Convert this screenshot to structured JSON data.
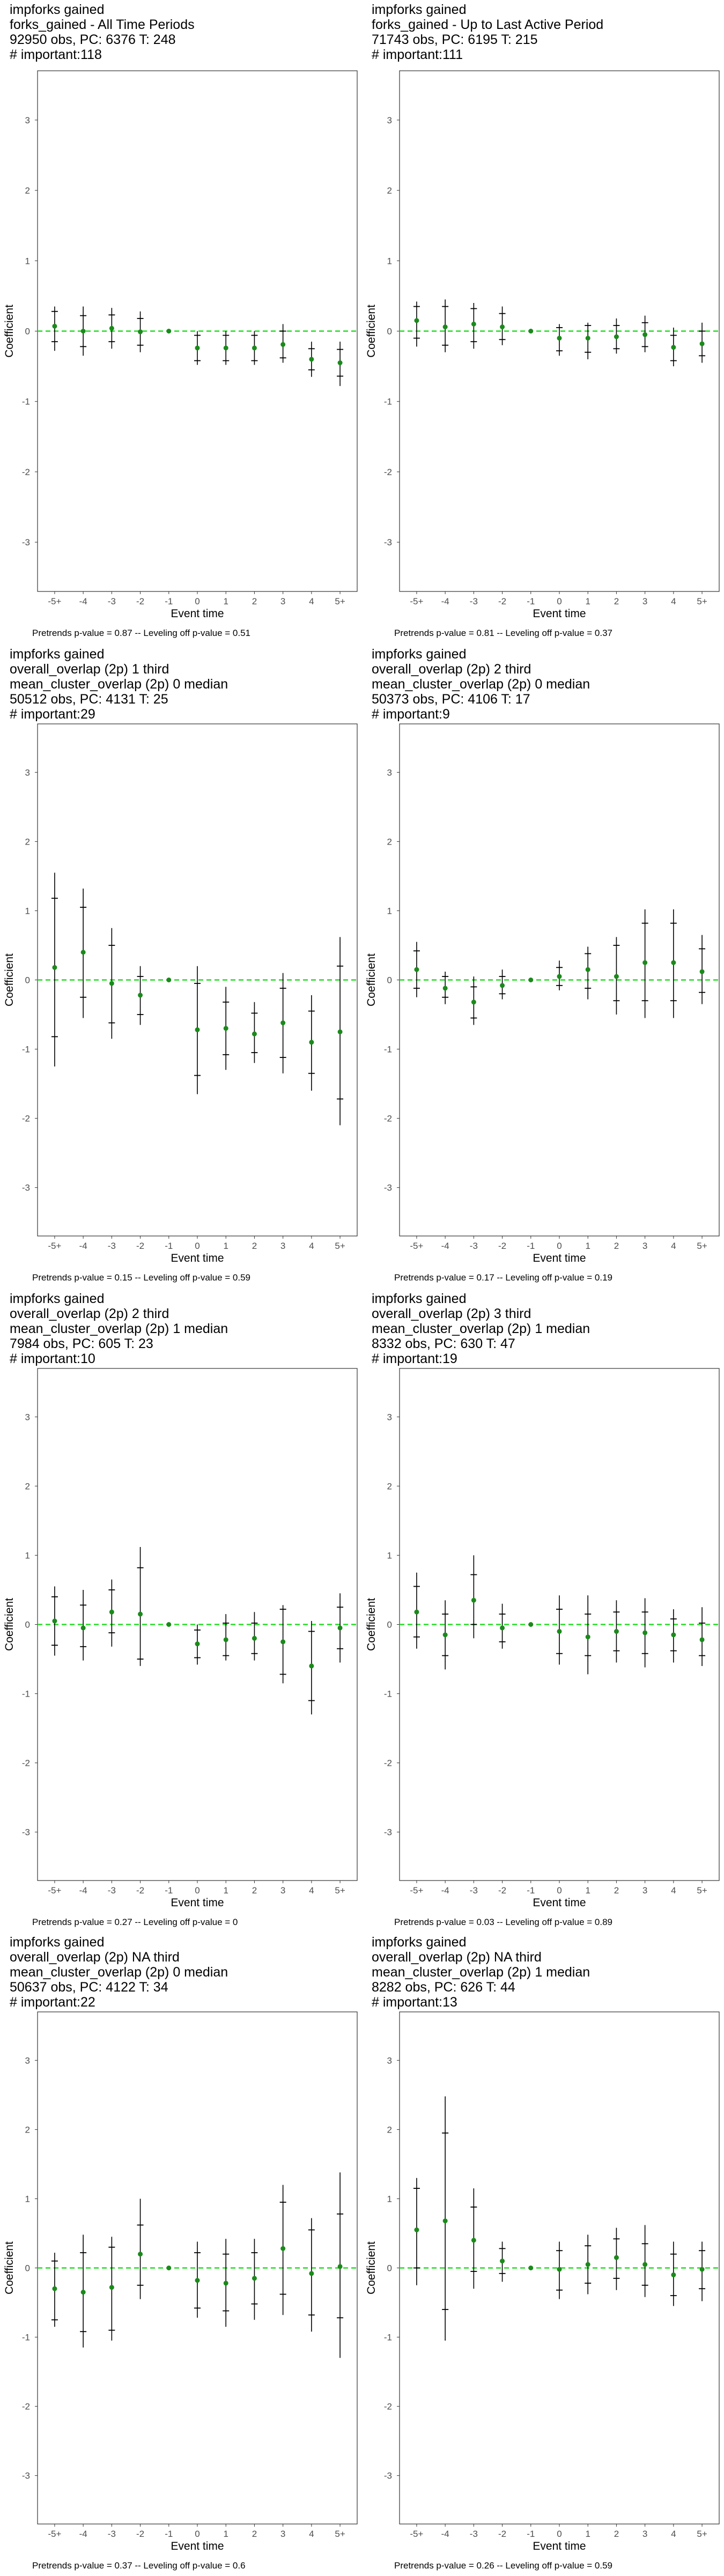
{
  "chart_data": [
    {
      "type": "scatter",
      "header": [
        " impforks gained",
        "forks_gained - All Time Periods",
        "92950 obs, PC: 6376 T: 248",
        "# important:118"
      ],
      "xlabel": "Event time",
      "ylabel": "Coefficient",
      "categories": [
        "-5+",
        "-4",
        "-3",
        "-2",
        "-1",
        "0",
        "1",
        "2",
        "3",
        "4",
        "5+"
      ],
      "ylim": [
        -3.7,
        3.7
      ],
      "yticks": [
        -3,
        -2,
        -1,
        0,
        1,
        2,
        3
      ],
      "series": [
        {
          "estimate": [
            0.07,
            0.0,
            0.04,
            -0.01,
            0.0,
            -0.24,
            -0.24,
            -0.24,
            -0.19,
            -0.4,
            -0.45
          ],
          "inner_lo": [
            -0.15,
            -0.22,
            -0.15,
            -0.2,
            0.0,
            -0.42,
            -0.42,
            -0.42,
            -0.38,
            -0.55,
            -0.64
          ],
          "inner_hi": [
            0.28,
            0.22,
            0.23,
            0.18,
            0.0,
            -0.06,
            -0.06,
            -0.06,
            0.0,
            -0.25,
            -0.26
          ],
          "outer_lo": [
            -0.28,
            -0.35,
            -0.25,
            -0.3,
            0.0,
            -0.48,
            -0.48,
            -0.48,
            -0.45,
            -0.65,
            -0.78
          ],
          "outer_hi": [
            0.35,
            0.35,
            0.33,
            0.28,
            0.0,
            0.0,
            0.0,
            0.0,
            0.1,
            -0.15,
            -0.15
          ]
        }
      ],
      "footer": "Pretrends p-value = 0.87 -- Leveling off p-value = 0.51"
    },
    {
      "type": "scatter",
      "header": [
        " impforks gained",
        "forks_gained - Up to Last Active Period",
        "71743 obs, PC: 6195 T: 215",
        "# important:111"
      ],
      "xlabel": "Event time",
      "ylabel": "Coefficient",
      "categories": [
        "-5+",
        "-4",
        "-3",
        "-2",
        "-1",
        "0",
        "1",
        "2",
        "3",
        "4",
        "5+"
      ],
      "ylim": [
        -3.7,
        3.7
      ],
      "yticks": [
        -3,
        -2,
        -1,
        0,
        1,
        2,
        3
      ],
      "series": [
        {
          "estimate": [
            0.15,
            0.06,
            0.1,
            0.06,
            0.0,
            -0.1,
            -0.1,
            -0.08,
            -0.05,
            -0.23,
            -0.18
          ],
          "inner_lo": [
            -0.1,
            -0.2,
            -0.15,
            -0.12,
            0.0,
            -0.28,
            -0.3,
            -0.25,
            -0.22,
            -0.42,
            -0.35
          ],
          "inner_hi": [
            0.35,
            0.35,
            0.32,
            0.25,
            0.0,
            0.05,
            0.08,
            0.08,
            0.12,
            -0.06,
            0.0
          ],
          "outer_lo": [
            -0.22,
            -0.3,
            -0.25,
            -0.2,
            0.0,
            -0.35,
            -0.4,
            -0.32,
            -0.3,
            -0.5,
            -0.45
          ],
          "outer_hi": [
            0.42,
            0.45,
            0.4,
            0.35,
            0.0,
            0.1,
            0.12,
            0.18,
            0.22,
            0.05,
            0.12
          ]
        }
      ],
      "footer": "Pretrends p-value = 0.81 -- Leveling off p-value = 0.37"
    },
    {
      "type": "scatter",
      "header": [
        " impforks gained",
        "overall_overlap (2p) 1 third",
        "mean_cluster_overlap (2p) 0 median",
        "50512 obs, PC: 4131 T: 25",
        "# important:29"
      ],
      "xlabel": "Event time",
      "ylabel": "Coefficient",
      "categories": [
        "-5+",
        "-4",
        "-3",
        "-2",
        "-1",
        "0",
        "1",
        "2",
        "3",
        "4",
        "5+"
      ],
      "ylim": [
        -3.7,
        3.7
      ],
      "yticks": [
        -3,
        -2,
        -1,
        0,
        1,
        2,
        3
      ],
      "series": [
        {
          "estimate": [
            0.18,
            0.4,
            -0.05,
            -0.22,
            0.0,
            -0.72,
            -0.7,
            -0.78,
            -0.62,
            -0.9,
            -0.75
          ],
          "inner_lo": [
            -0.82,
            -0.25,
            -0.62,
            -0.5,
            0.0,
            -1.38,
            -1.08,
            -1.05,
            -1.12,
            -1.35,
            -1.72
          ],
          "inner_hi": [
            1.18,
            1.05,
            0.5,
            0.05,
            0.0,
            -0.05,
            -0.32,
            -0.48,
            -0.12,
            -0.45,
            0.2
          ],
          "outer_lo": [
            -1.25,
            -0.55,
            -0.85,
            -0.65,
            0.0,
            -1.65,
            -1.3,
            -1.2,
            -1.35,
            -1.6,
            -2.1
          ],
          "outer_hi": [
            1.55,
            1.32,
            0.75,
            0.2,
            0.0,
            0.2,
            -0.1,
            -0.32,
            0.1,
            -0.22,
            0.62
          ]
        }
      ],
      "footer": "Pretrends p-value = 0.15 -- Leveling off p-value = 0.59"
    },
    {
      "type": "scatter",
      "header": [
        " impforks gained",
        "overall_overlap (2p) 2 third",
        "mean_cluster_overlap (2p) 0 median",
        "50373 obs, PC: 4106 T: 17",
        "# important:9"
      ],
      "xlabel": "Event time",
      "ylabel": "Coefficient",
      "categories": [
        "-5+",
        "-4",
        "-3",
        "-2",
        "-1",
        "0",
        "1",
        "2",
        "3",
        "4",
        "5+"
      ],
      "ylim": [
        -3.7,
        3.7
      ],
      "yticks": [
        -3,
        -2,
        -1,
        0,
        1,
        2,
        3
      ],
      "series": [
        {
          "estimate": [
            0.15,
            -0.12,
            -0.32,
            -0.08,
            0.0,
            0.05,
            0.15,
            0.05,
            0.25,
            0.25,
            0.12
          ],
          "inner_lo": [
            -0.12,
            -0.25,
            -0.55,
            -0.2,
            0.0,
            -0.08,
            -0.12,
            -0.3,
            -0.3,
            -0.3,
            -0.18
          ],
          "inner_hi": [
            0.42,
            0.05,
            -0.1,
            0.05,
            0.0,
            0.18,
            0.38,
            0.5,
            0.82,
            0.82,
            0.45
          ],
          "outer_lo": [
            -0.25,
            -0.35,
            -0.65,
            -0.28,
            0.0,
            -0.15,
            -0.28,
            -0.5,
            -0.55,
            -0.55,
            -0.35
          ],
          "outer_hi": [
            0.55,
            0.12,
            0.05,
            0.15,
            0.0,
            0.28,
            0.48,
            0.62,
            1.02,
            1.02,
            0.65
          ]
        }
      ],
      "footer": "Pretrends p-value = 0.17 -- Leveling off p-value = 0.19"
    },
    {
      "type": "scatter",
      "header": [
        " impforks gained",
        "overall_overlap (2p) 2 third",
        "mean_cluster_overlap (2p) 1 median",
        "7984 obs, PC: 605 T: 23",
        "# important:10"
      ],
      "xlabel": "Event time",
      "ylabel": "Coefficient",
      "categories": [
        "-5+",
        "-4",
        "-3",
        "-2",
        "-1",
        "0",
        "1",
        "2",
        "3",
        "4",
        "5+"
      ],
      "ylim": [
        -3.7,
        3.7
      ],
      "yticks": [
        -3,
        -2,
        -1,
        0,
        1,
        2,
        3
      ],
      "series": [
        {
          "estimate": [
            0.05,
            -0.05,
            0.18,
            0.15,
            0.0,
            -0.28,
            -0.22,
            -0.2,
            -0.25,
            -0.6,
            -0.05
          ],
          "inner_lo": [
            -0.3,
            -0.32,
            -0.12,
            -0.5,
            0.0,
            -0.48,
            -0.45,
            -0.42,
            -0.72,
            -1.1,
            -0.35
          ],
          "inner_hi": [
            0.4,
            0.28,
            0.5,
            0.82,
            0.0,
            -0.08,
            0.02,
            0.02,
            0.22,
            -0.1,
            0.25
          ],
          "outer_lo": [
            -0.45,
            -0.52,
            -0.32,
            -0.6,
            0.0,
            -0.58,
            -0.52,
            -0.52,
            -0.85,
            -1.3,
            -0.55
          ],
          "outer_hi": [
            0.55,
            0.5,
            0.65,
            1.12,
            0.0,
            0.0,
            0.15,
            0.18,
            0.28,
            0.05,
            0.45
          ]
        }
      ],
      "footer": "Pretrends p-value = 0.27 -- Leveling off p-value = 0"
    },
    {
      "type": "scatter",
      "header": [
        " impforks gained",
        "overall_overlap (2p) 3 third",
        "mean_cluster_overlap (2p) 1 median",
        "8332 obs, PC: 630 T: 47",
        "# important:19"
      ],
      "xlabel": "Event time",
      "ylabel": "Coefficient",
      "categories": [
        "-5+",
        "-4",
        "-3",
        "-2",
        "-1",
        "0",
        "1",
        "2",
        "3",
        "4",
        "5+"
      ],
      "ylim": [
        -3.7,
        3.7
      ],
      "yticks": [
        -3,
        -2,
        -1,
        0,
        1,
        2,
        3
      ],
      "series": [
        {
          "estimate": [
            0.18,
            -0.15,
            0.35,
            -0.05,
            0.0,
            -0.1,
            -0.18,
            -0.1,
            -0.12,
            -0.15,
            -0.22
          ],
          "inner_lo": [
            -0.18,
            -0.45,
            0.0,
            -0.25,
            0.0,
            -0.42,
            -0.45,
            -0.38,
            -0.42,
            -0.38,
            -0.45
          ],
          "inner_hi": [
            0.55,
            0.15,
            0.72,
            0.15,
            0.0,
            0.22,
            0.15,
            0.18,
            0.18,
            0.08,
            0.02
          ],
          "outer_lo": [
            -0.35,
            -0.65,
            -0.2,
            -0.35,
            0.0,
            -0.58,
            -0.72,
            -0.55,
            -0.62,
            -0.55,
            -0.6
          ],
          "outer_hi": [
            0.75,
            0.35,
            1.0,
            0.3,
            0.0,
            0.42,
            0.42,
            0.35,
            0.38,
            0.22,
            0.25
          ]
        }
      ],
      "footer": "Pretrends p-value = 0.03 -- Leveling off p-value = 0.89"
    },
    {
      "type": "scatter",
      "header": [
        " impforks gained",
        "overall_overlap (2p) NA third",
        "mean_cluster_overlap (2p) 0 median",
        "50637 obs, PC: 4122 T: 34",
        "# important:22"
      ],
      "xlabel": "Event time",
      "ylabel": "Coefficient",
      "categories": [
        "-5+",
        "-4",
        "-3",
        "-2",
        "-1",
        "0",
        "1",
        "2",
        "3",
        "4",
        "5+"
      ],
      "ylim": [
        -3.7,
        3.7
      ],
      "yticks": [
        -3,
        -2,
        -1,
        0,
        1,
        2,
        3
      ],
      "series": [
        {
          "estimate": [
            -0.3,
            -0.35,
            -0.28,
            0.2,
            0.0,
            -0.18,
            -0.22,
            -0.15,
            0.28,
            -0.08,
            0.02
          ],
          "inner_lo": [
            -0.75,
            -0.92,
            -0.9,
            -0.25,
            0.0,
            -0.58,
            -0.62,
            -0.52,
            -0.38,
            -0.68,
            -0.72
          ],
          "inner_hi": [
            0.1,
            0.22,
            0.3,
            0.62,
            0.0,
            0.22,
            0.2,
            0.22,
            0.95,
            0.55,
            0.78
          ],
          "outer_lo": [
            -0.85,
            -1.15,
            -1.05,
            -0.45,
            0.0,
            -0.72,
            -0.85,
            -0.75,
            -0.68,
            -0.92,
            -1.3
          ],
          "outer_hi": [
            0.22,
            0.48,
            0.45,
            1.0,
            0.0,
            0.38,
            0.42,
            0.42,
            1.2,
            0.72,
            1.38
          ]
        }
      ],
      "footer": "Pretrends p-value = 0.37 -- Leveling off p-value = 0.6"
    },
    {
      "type": "scatter",
      "header": [
        " impforks gained",
        "overall_overlap (2p) NA third",
        "mean_cluster_overlap (2p) 1 median",
        "8282 obs, PC: 626 T: 44",
        "# important:13"
      ],
      "xlabel": "Event time",
      "ylabel": "Coefficient",
      "categories": [
        "-5+",
        "-4",
        "-3",
        "-2",
        "-1",
        "0",
        "1",
        "2",
        "3",
        "4",
        "5+"
      ],
      "ylim": [
        -3.7,
        3.7
      ],
      "yticks": [
        -3,
        -2,
        -1,
        0,
        1,
        2,
        3
      ],
      "series": [
        {
          "estimate": [
            0.55,
            0.68,
            0.4,
            0.1,
            0.0,
            -0.02,
            0.05,
            0.15,
            0.05,
            -0.1,
            -0.02
          ],
          "inner_lo": [
            0.0,
            -0.6,
            -0.05,
            -0.08,
            0.0,
            -0.32,
            -0.22,
            -0.15,
            -0.25,
            -0.4,
            -0.3
          ],
          "inner_hi": [
            1.15,
            1.95,
            0.88,
            0.28,
            0.0,
            0.25,
            0.32,
            0.42,
            0.35,
            0.2,
            0.25
          ],
          "outer_lo": [
            -0.25,
            -1.05,
            -0.3,
            -0.2,
            0.0,
            -0.45,
            -0.38,
            -0.32,
            -0.42,
            -0.55,
            -0.48
          ],
          "outer_hi": [
            1.3,
            2.48,
            1.15,
            0.38,
            0.0,
            0.38,
            0.48,
            0.58,
            0.62,
            0.38,
            0.38
          ]
        }
      ],
      "footer": "Pretrends p-value = 0.26 -- Leveling off p-value = 0.59"
    }
  ],
  "colors": {
    "estimate": "#1a8a1a",
    "zero_line": "#22dd22",
    "whisker": "#000000",
    "frame": "#333333",
    "tick_text": "#4d4d4d"
  }
}
